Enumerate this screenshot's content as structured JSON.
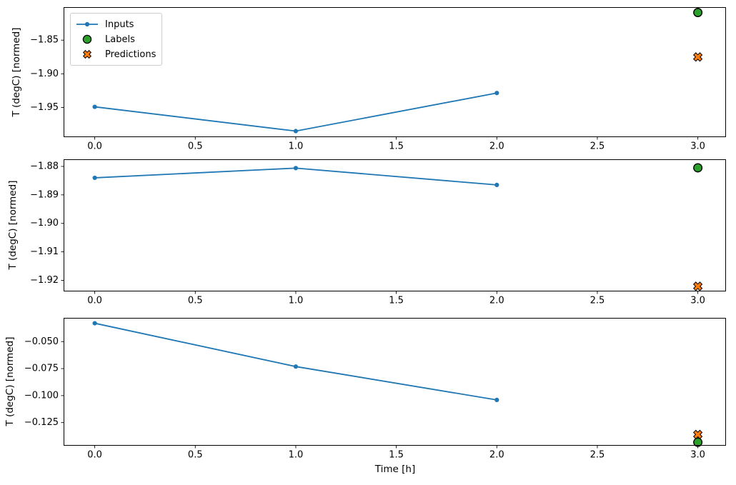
{
  "figure": {
    "background": "#ffffff",
    "text_color": "#000000",
    "spine_color": "#000000",
    "legend": {
      "position": "upper-left-of-first-subplot",
      "items": [
        {
          "label": "Inputs",
          "marker": "line-dot",
          "color": "#1f77b4",
          "edge_color": "#1f77b4"
        },
        {
          "label": "Labels",
          "marker": "circle",
          "color": "#2ca02c",
          "edge_color": "#000000"
        },
        {
          "label": "Predictions",
          "marker": "x-cross",
          "color": "#ff7f0e",
          "edge_color": "#000000"
        }
      ]
    }
  },
  "chart_data": [
    {
      "type": "line",
      "title": "",
      "ylabel": "T (degC) [normed]",
      "xlabel": "",
      "grid": false,
      "xlim": [
        -0.155,
        3.14
      ],
      "ylim": [
        -1.994,
        -1.801
      ],
      "xticks": [
        {
          "v": 0.0,
          "label": "0.0"
        },
        {
          "v": 0.5,
          "label": "0.5"
        },
        {
          "v": 1.0,
          "label": "1.0"
        },
        {
          "v": 1.5,
          "label": "1.5"
        },
        {
          "v": 2.0,
          "label": "2.0"
        },
        {
          "v": 2.5,
          "label": "2.5"
        },
        {
          "v": 3.0,
          "label": "3.0"
        }
      ],
      "yticks": [
        {
          "v": -1.85,
          "label": "−1.85"
        },
        {
          "v": -1.9,
          "label": "−1.90"
        },
        {
          "v": -1.95,
          "label": "−1.95"
        }
      ],
      "series": [
        {
          "name": "Inputs",
          "type": "line",
          "color": "#1f77b4",
          "x": [
            0,
            1,
            2
          ],
          "y": [
            -1.949,
            -1.985,
            -1.9285
          ]
        },
        {
          "name": "Labels",
          "type": "scatter-circle",
          "color": "#2ca02c",
          "edge_color": "#000000",
          "x": [
            3
          ],
          "y": [
            -1.809
          ]
        },
        {
          "name": "Predictions",
          "type": "scatter-x",
          "color": "#ff7f0e",
          "edge_color": "#000000",
          "x": [
            3
          ],
          "y": [
            -1.875
          ]
        }
      ],
      "show_legend": true
    },
    {
      "type": "line",
      "title": "",
      "ylabel": "T (degC) [normed]",
      "xlabel": "",
      "grid": false,
      "xlim": [
        -0.155,
        3.14
      ],
      "ylim": [
        -1.9239,
        -1.8775
      ],
      "xticks": [
        {
          "v": 0.0,
          "label": "0.0"
        },
        {
          "v": 0.5,
          "label": "0.5"
        },
        {
          "v": 1.0,
          "label": "1.0"
        },
        {
          "v": 1.5,
          "label": "1.5"
        },
        {
          "v": 2.0,
          "label": "2.0"
        },
        {
          "v": 2.5,
          "label": "2.5"
        },
        {
          "v": 3.0,
          "label": "3.0"
        }
      ],
      "yticks": [
        {
          "v": -1.88,
          "label": "−1.88"
        },
        {
          "v": -1.89,
          "label": "−1.89"
        },
        {
          "v": -1.9,
          "label": "−1.90"
        },
        {
          "v": -1.91,
          "label": "−1.91"
        },
        {
          "v": -1.92,
          "label": "−1.92"
        }
      ],
      "series": [
        {
          "name": "Inputs",
          "type": "line",
          "color": "#1f77b4",
          "x": [
            0,
            1,
            2
          ],
          "y": [
            -1.884,
            -1.8806,
            -1.8865
          ]
        },
        {
          "name": "Labels",
          "type": "scatter-circle",
          "color": "#2ca02c",
          "edge_color": "#000000",
          "x": [
            3
          ],
          "y": [
            -1.8805
          ]
        },
        {
          "name": "Predictions",
          "type": "scatter-x",
          "color": "#ff7f0e",
          "edge_color": "#000000",
          "x": [
            3
          ],
          "y": [
            -1.9221
          ]
        }
      ],
      "show_legend": false
    },
    {
      "type": "line",
      "title": "",
      "ylabel": "T (degC) [normed]",
      "xlabel": "Time [h]",
      "grid": false,
      "xlim": [
        -0.155,
        3.14
      ],
      "ylim": [
        -0.1464,
        -0.028
      ],
      "xticks": [
        {
          "v": 0.0,
          "label": "0.0"
        },
        {
          "v": 0.5,
          "label": "0.5"
        },
        {
          "v": 1.0,
          "label": "1.0"
        },
        {
          "v": 1.5,
          "label": "1.5"
        },
        {
          "v": 2.0,
          "label": "2.0"
        },
        {
          "v": 2.5,
          "label": "2.5"
        },
        {
          "v": 3.0,
          "label": "3.0"
        }
      ],
      "yticks": [
        {
          "v": -0.05,
          "label": "−0.050"
        },
        {
          "v": -0.075,
          "label": "−0.075"
        },
        {
          "v": -0.1,
          "label": "−0.100"
        },
        {
          "v": -0.125,
          "label": "−0.125"
        }
      ],
      "series": [
        {
          "name": "Inputs",
          "type": "line",
          "color": "#1f77b4",
          "x": [
            0,
            1,
            2
          ],
          "y": [
            -0.033,
            -0.0731,
            -0.104
          ]
        },
        {
          "name": "Labels",
          "type": "scatter-circle",
          "color": "#2ca02c",
          "edge_color": "#000000",
          "x": [
            3
          ],
          "y": [
            -0.1432
          ]
        },
        {
          "name": "Predictions",
          "type": "scatter-x",
          "color": "#ff7f0e",
          "edge_color": "#000000",
          "x": [
            3
          ],
          "y": [
            -0.136
          ]
        }
      ],
      "show_legend": false
    }
  ]
}
